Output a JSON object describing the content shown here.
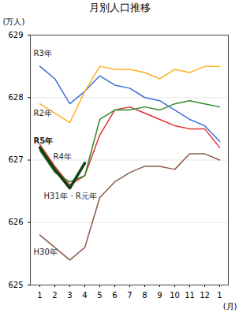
{
  "chart_data": {
    "type": "line",
    "title": "月別人口推移",
    "y_label": "(万人)",
    "x_label": "(月)",
    "categories": [
      "1",
      "2",
      "3",
      "4",
      "5",
      "6",
      "7",
      "8",
      "9",
      "10",
      "11",
      "12",
      "1"
    ],
    "ylim": [
      625,
      629
    ],
    "yticks": [
      625,
      626,
      627,
      628,
      629
    ],
    "grid": true,
    "series": [
      {
        "name": "R3年",
        "color": "#3a6fd8",
        "line_style": "solid",
        "values": [
          628.5,
          628.3,
          627.9,
          628.1,
          628.35,
          628.2,
          628.15,
          628.0,
          627.95,
          627.8,
          627.65,
          627.55,
          627.3
        ]
      },
      {
        "name": "R2年",
        "color": "#ffb020",
        "line_style": "solid",
        "values": [
          627.9,
          627.75,
          627.6,
          628.1,
          628.5,
          628.45,
          628.45,
          628.4,
          628.3,
          628.45,
          628.4,
          628.5,
          628.5
        ]
      },
      {
        "name": "R5年",
        "color": "#123d12",
        "line_style": "thick",
        "values": [
          627.2,
          626.85,
          626.55,
          626.95,
          null,
          null,
          null,
          null,
          null,
          null,
          null,
          null,
          null
        ]
      },
      {
        "name": "R4年",
        "color": "#e03030",
        "line_style": "solid",
        "values": [
          627.25,
          626.9,
          626.6,
          626.75,
          627.4,
          627.8,
          627.85,
          627.75,
          627.65,
          627.55,
          627.5,
          627.5,
          627.2
        ]
      },
      {
        "name": "H31年・R元年",
        "color": "#2e8b2e",
        "line_style": "solid",
        "values": [
          627.15,
          626.8,
          626.65,
          626.75,
          627.65,
          627.8,
          627.8,
          627.85,
          627.8,
          627.9,
          627.95,
          627.9,
          627.85
        ]
      },
      {
        "name": "H30年",
        "color": "#8b5a4a",
        "line_style": "solid",
        "values": [
          625.8,
          625.6,
          625.4,
          625.6,
          626.4,
          626.65,
          626.8,
          626.9,
          626.9,
          626.85,
          627.1,
          627.1,
          627.0
        ]
      }
    ]
  }
}
